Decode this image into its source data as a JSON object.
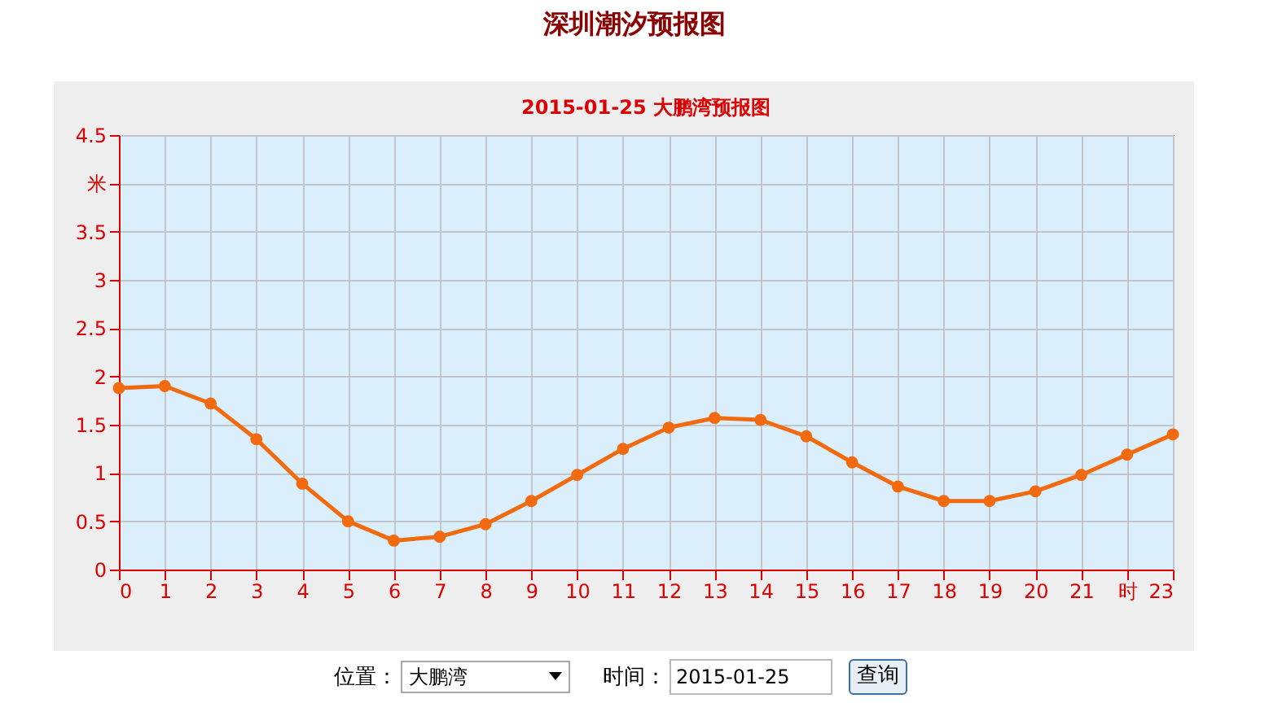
{
  "chart_data": {
    "type": "line",
    "title": "深圳潮汐预报图",
    "subtitle": "2015-01-25 大鹏湾预报图",
    "x": [
      0,
      1,
      2,
      3,
      4,
      5,
      6,
      7,
      8,
      9,
      10,
      11,
      12,
      13,
      14,
      15,
      16,
      17,
      18,
      19,
      20,
      21,
      22,
      23
    ],
    "series": [
      {
        "color": "#f26a0f",
        "values": [
          1.88,
          1.9,
          1.72,
          1.35,
          0.89,
          0.5,
          0.3,
          0.34,
          0.47,
          0.71,
          0.98,
          1.25,
          1.47,
          1.57,
          1.55,
          1.38,
          1.11,
          0.86,
          0.71,
          0.71,
          0.81,
          0.98,
          1.19,
          1.4
        ]
      }
    ],
    "xlim": [
      0,
      23
    ],
    "xticks": [
      0,
      1,
      2,
      3,
      4,
      5,
      6,
      7,
      8,
      9,
      10,
      11,
      12,
      13,
      14,
      15,
      16,
      17,
      18,
      19,
      20,
      21,
      {
        "value": 22,
        "label": "时"
      },
      23
    ],
    "ylim": [
      0,
      4.5
    ],
    "yticks": [
      0,
      0.5,
      1,
      1.5,
      2,
      2.5,
      3,
      3.5,
      {
        "value": 4,
        "label": "米"
      },
      4.5
    ],
    "grid": true,
    "marker": "circle",
    "line_style": "solid",
    "annotations": [
      "位置：",
      "大鹏湾",
      "时间：",
      "2015-01-25",
      "查询"
    ]
  }
}
